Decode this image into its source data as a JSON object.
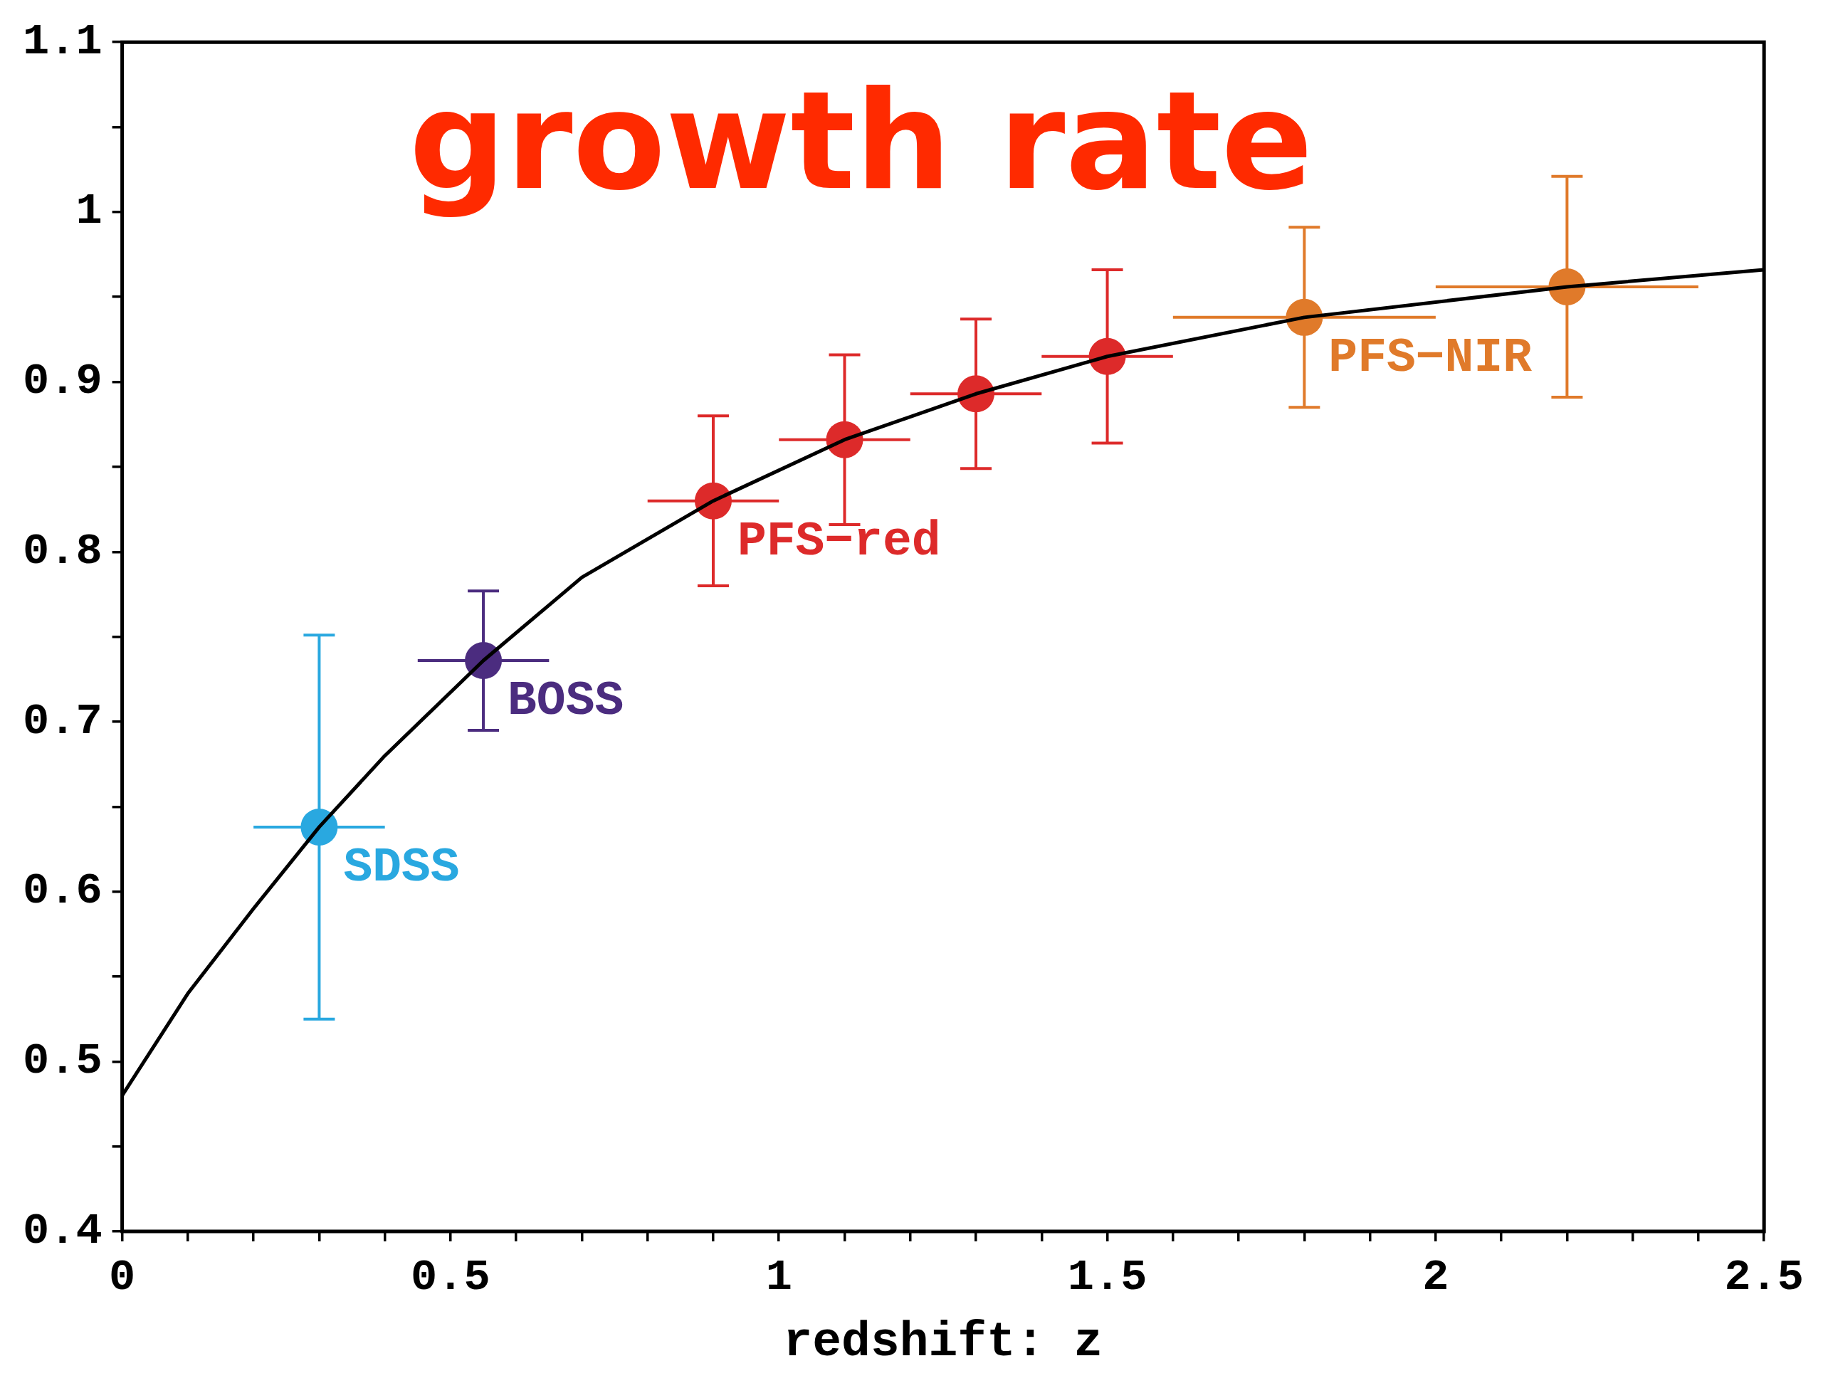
{
  "chart_data": {
    "type": "scatter",
    "title": "growth rate",
    "xlabel": "redshift: z",
    "xlim": [
      0,
      2.5
    ],
    "ylim": [
      0.4,
      1.1
    ],
    "xticks": [
      0,
      {
        "value": 0.1,
        "label": null
      },
      {
        "value": 0.2,
        "label": null
      },
      {
        "value": 0.3,
        "label": null
      },
      {
        "value": 0.4,
        "label": null
      },
      0.5,
      {
        "value": 0.6,
        "label": null
      },
      {
        "value": 0.7,
        "label": null
      },
      {
        "value": 0.8,
        "label": null
      },
      {
        "value": 0.9,
        "label": null
      },
      1,
      {
        "value": 1.1,
        "label": null
      },
      {
        "value": 1.2,
        "label": null
      },
      {
        "value": 1.3,
        "label": null
      },
      {
        "value": 1.4,
        "label": null
      },
      1.5,
      {
        "value": 1.6,
        "label": null
      },
      {
        "value": 1.7,
        "label": null
      },
      {
        "value": 1.8,
        "label": null
      },
      {
        "value": 1.9,
        "label": null
      },
      2,
      {
        "value": 2.1,
        "label": null
      },
      {
        "value": 2.2,
        "label": null
      },
      {
        "value": 2.3,
        "label": null
      },
      {
        "value": 2.4,
        "label": null
      },
      2.5
    ],
    "yticks": [
      0.4,
      {
        "value": 0.45,
        "label": null
      },
      0.5,
      {
        "value": 0.55,
        "label": null
      },
      0.6,
      {
        "value": 0.65,
        "label": null
      },
      0.7,
      {
        "value": 0.75,
        "label": null
      },
      0.8,
      {
        "value": 0.85,
        "label": null
      },
      0.9,
      {
        "value": 0.95,
        "label": null
      },
      1,
      {
        "value": 1.05,
        "label": null
      },
      1.1
    ],
    "grid": false,
    "marker": "circle",
    "series": [
      {
        "type": "line",
        "color": "#000000",
        "marker": "none",
        "x": [
          0,
          0.1,
          0.2,
          0.3,
          0.4,
          0.55,
          0.7,
          0.9,
          1.1,
          1.3,
          1.5,
          1.8,
          2.2,
          2.5
        ],
        "values": [
          0.48,
          0.54,
          0.59,
          0.638,
          0.68,
          0.736,
          0.785,
          0.83,
          0.866,
          0.893,
          0.915,
          0.938,
          0.956,
          0.966
        ]
      },
      {
        "name": "SDSS",
        "color": "#29a8e0",
        "x": [
          0.3
        ],
        "values": [
          0.638
        ],
        "errors": [
          0.113
        ],
        "xerrors": [
          0.1
        ]
      },
      {
        "name": "BOSS",
        "color": "#4b2c7f",
        "x": [
          0.55
        ],
        "values": [
          0.736
        ],
        "errors": [
          0.041
        ],
        "xerrors": [
          0.1
        ]
      },
      {
        "name": "PFS−red",
        "color": "#dd2a2a",
        "x": [
          0.9,
          1.1,
          1.3,
          1.5
        ],
        "values": [
          0.83,
          0.866,
          0.893,
          0.915
        ],
        "errors": [
          0.05,
          0.05,
          0.044,
          0.051
        ],
        "xerrors": [
          0.1,
          0.1,
          0.1,
          0.1
        ]
      },
      {
        "name": "PFS−NIR",
        "color": "#e07a2a",
        "x": [
          1.8,
          2.2
        ],
        "values": [
          0.938,
          0.956
        ],
        "errors": [
          0.053,
          0.065
        ],
        "xerrors": [
          0.2,
          0.2
        ]
      }
    ]
  }
}
